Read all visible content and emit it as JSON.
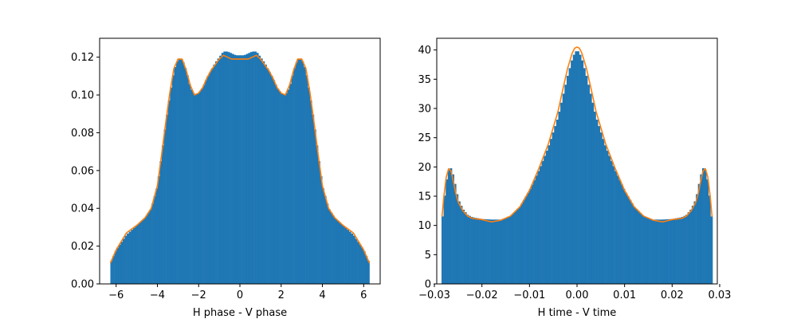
{
  "colors": {
    "bars": "#1f77b4",
    "curve": "#ff7f0e",
    "frame": "#000000",
    "background": "#ffffff"
  },
  "chart_data": [
    {
      "type": "histogram",
      "title": "",
      "xlabel": "H phase - V phase",
      "ylabel": "",
      "xlim": [
        -6.8,
        6.8
      ],
      "ylim": [
        0,
        0.13
      ],
      "xticks": [
        -6,
        -4,
        -2,
        0,
        2,
        4,
        6
      ],
      "yticks": [
        0.0,
        0.02,
        0.04,
        0.06,
        0.08,
        0.1,
        0.12
      ],
      "ytick_decimals": 2,
      "xtick_decimals": 0,
      "grid": false,
      "legend": "none",
      "series": [
        {
          "kind": "histogram",
          "x": [
            -6.28,
            -6.0,
            -5.5,
            -5.0,
            -4.6,
            -4.3,
            -4.0,
            -3.8,
            -3.6,
            -3.4,
            -3.2,
            -3.0,
            -2.8,
            -2.6,
            -2.4,
            -2.2,
            -2.0,
            -1.8,
            -1.6,
            -1.4,
            -1.2,
            -1.0,
            -0.8,
            -0.6,
            -0.4,
            -0.2,
            0.0,
            0.2,
            0.4,
            0.6,
            0.8,
            1.0,
            1.2,
            1.4,
            1.6,
            1.8,
            2.0,
            2.2,
            2.4,
            2.6,
            2.8,
            3.0,
            3.2,
            3.4,
            3.6,
            3.8,
            4.0,
            4.3,
            4.6,
            5.0,
            5.5,
            6.0,
            6.28
          ],
          "y": [
            0.011,
            0.018,
            0.026,
            0.031,
            0.035,
            0.04,
            0.052,
            0.068,
            0.085,
            0.1,
            0.113,
            0.119,
            0.119,
            0.113,
            0.104,
            0.1,
            0.101,
            0.104,
            0.109,
            0.113,
            0.117,
            0.12,
            0.123,
            0.123,
            0.122,
            0.121,
            0.121,
            0.121,
            0.122,
            0.123,
            0.123,
            0.12,
            0.117,
            0.113,
            0.109,
            0.104,
            0.101,
            0.1,
            0.104,
            0.113,
            0.119,
            0.119,
            0.113,
            0.1,
            0.085,
            0.068,
            0.052,
            0.04,
            0.035,
            0.031,
            0.026,
            0.018,
            0.011
          ],
          "bin_count": 126,
          "range": [
            -6.28,
            6.28
          ]
        },
        {
          "kind": "line",
          "x": [
            -6.28,
            -6.0,
            -5.5,
            -5.0,
            -4.6,
            -4.3,
            -4.0,
            -3.8,
            -3.6,
            -3.4,
            -3.2,
            -3.0,
            -2.8,
            -2.6,
            -2.4,
            -2.2,
            -2.0,
            -1.8,
            -1.6,
            -1.4,
            -1.2,
            -1.0,
            -0.8,
            -0.6,
            -0.4,
            -0.2,
            0.0,
            0.2,
            0.4,
            0.6,
            0.8,
            1.0,
            1.2,
            1.4,
            1.6,
            1.8,
            2.0,
            2.2,
            2.4,
            2.6,
            2.8,
            3.0,
            3.2,
            3.4,
            3.6,
            3.8,
            4.0,
            4.3,
            4.6,
            5.0,
            5.5,
            6.0,
            6.28
          ],
          "y": [
            0.011,
            0.018,
            0.027,
            0.031,
            0.035,
            0.04,
            0.052,
            0.068,
            0.085,
            0.101,
            0.114,
            0.119,
            0.119,
            0.113,
            0.105,
            0.1,
            0.101,
            0.104,
            0.109,
            0.113,
            0.116,
            0.119,
            0.121,
            0.12,
            0.119,
            0.119,
            0.119,
            0.119,
            0.119,
            0.12,
            0.121,
            0.119,
            0.116,
            0.113,
            0.109,
            0.104,
            0.101,
            0.1,
            0.105,
            0.113,
            0.119,
            0.119,
            0.114,
            0.101,
            0.085,
            0.068,
            0.052,
            0.04,
            0.035,
            0.031,
            0.027,
            0.018,
            0.011
          ]
        }
      ]
    },
    {
      "type": "histogram",
      "title": "",
      "xlabel": "H time - V time",
      "ylabel": "",
      "xlim": [
        -0.0295,
        0.0295
      ],
      "ylim": [
        0,
        42
      ],
      "xticks": [
        -0.03,
        -0.02,
        -0.01,
        0.0,
        0.01,
        0.02,
        0.03
      ],
      "yticks": [
        0,
        5,
        10,
        15,
        20,
        25,
        30,
        35,
        40
      ],
      "ytick_decimals": 0,
      "xtick_decimals": 2,
      "grid": false,
      "legend": "none",
      "series": [
        {
          "kind": "histogram",
          "x": [
            -0.0284,
            -0.028,
            -0.0275,
            -0.027,
            -0.0265,
            -0.026,
            -0.0255,
            -0.025,
            -0.024,
            -0.023,
            -0.022,
            -0.02,
            -0.018,
            -0.016,
            -0.014,
            -0.012,
            -0.01,
            -0.008,
            -0.006,
            -0.004,
            -0.003,
            -0.002,
            -0.001,
            -0.0005,
            0.0,
            0.0005,
            0.001,
            0.002,
            0.003,
            0.004,
            0.006,
            0.008,
            0.01,
            0.012,
            0.014,
            0.016,
            0.018,
            0.02,
            0.022,
            0.023,
            0.024,
            0.025,
            0.0255,
            0.026,
            0.0265,
            0.027,
            0.0275,
            0.028,
            0.0284
          ],
          "y": [
            10.5,
            14.0,
            17.5,
            19.5,
            19.8,
            18.5,
            16.5,
            14.5,
            12.8,
            11.8,
            11.4,
            11.1,
            11.0,
            11.0,
            11.6,
            13.2,
            16.0,
            19.5,
            23.5,
            28.5,
            32.0,
            35.5,
            38.5,
            39.5,
            40.0,
            39.5,
            38.5,
            35.5,
            32.0,
            28.5,
            23.5,
            19.5,
            16.0,
            13.2,
            11.6,
            11.0,
            11.0,
            11.1,
            11.4,
            11.8,
            12.8,
            14.5,
            16.5,
            18.5,
            19.8,
            19.5,
            17.5,
            14.0,
            10.5
          ],
          "bin_count": 130,
          "range": [
            -0.0285,
            0.0285
          ]
        },
        {
          "kind": "line",
          "x": [
            -0.0284,
            -0.028,
            -0.0275,
            -0.027,
            -0.0265,
            -0.026,
            -0.0255,
            -0.025,
            -0.024,
            -0.023,
            -0.022,
            -0.02,
            -0.018,
            -0.016,
            -0.014,
            -0.012,
            -0.01,
            -0.008,
            -0.006,
            -0.004,
            -0.003,
            -0.002,
            -0.001,
            -0.0005,
            0.0,
            0.0005,
            0.001,
            0.002,
            0.003,
            0.004,
            0.006,
            0.008,
            0.01,
            0.012,
            0.014,
            0.016,
            0.018,
            0.02,
            0.022,
            0.023,
            0.024,
            0.025,
            0.0255,
            0.026,
            0.0265,
            0.027,
            0.0275,
            0.028,
            0.0284
          ],
          "y": [
            11.5,
            15.0,
            18.3,
            19.7,
            19.3,
            17.5,
            15.5,
            14.0,
            12.5,
            11.6,
            11.2,
            11.0,
            10.6,
            10.9,
            11.6,
            13.2,
            16.0,
            19.8,
            24.0,
            29.5,
            33.2,
            36.8,
            39.5,
            40.3,
            40.5,
            40.3,
            39.5,
            36.8,
            33.2,
            29.5,
            24.0,
            19.8,
            16.0,
            13.2,
            11.6,
            10.9,
            10.6,
            11.0,
            11.2,
            11.6,
            12.5,
            14.0,
            15.5,
            17.5,
            19.3,
            19.7,
            18.3,
            15.0,
            11.5
          ]
        }
      ]
    }
  ]
}
